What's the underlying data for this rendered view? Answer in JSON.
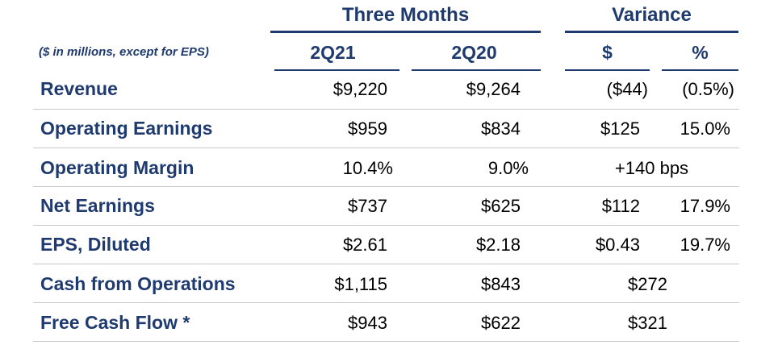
{
  "header": {
    "group_three_months": "Three Months",
    "group_variance": "Variance",
    "units_note": "($ in millions, except for EPS)",
    "col_2q21": "2Q21",
    "col_2q20": "2Q20",
    "col_var_dollar": "$",
    "col_var_pct": "%"
  },
  "rows": [
    {
      "label": "Revenue",
      "q21": "$9,220",
      "q20": "$9,264",
      "var_dollar": "($44)",
      "var_pct": "(0.5%)"
    },
    {
      "label": "Operating Earnings",
      "q21": "$959",
      "q20": "$834",
      "var_dollar": "$125",
      "var_pct": "15.0%"
    },
    {
      "label": "Operating Margin",
      "q21": "10.4%",
      "q20": "9.0%",
      "var_combined": "+140 bps"
    },
    {
      "label": "Net Earnings",
      "q21": "$737",
      "q20": "$625",
      "var_dollar": "$112",
      "var_pct": "17.9%"
    },
    {
      "label": "EPS, Diluted",
      "q21": "$2.61",
      "q20": "$2.18",
      "var_dollar": "$0.43",
      "var_pct": "19.7%"
    },
    {
      "label": "Cash from Operations",
      "q21": "$1,115",
      "q20": "$843",
      "var_combined": "$272"
    },
    {
      "label": "Free Cash Flow *",
      "q21": "$943",
      "q20": "$622",
      "var_combined": "$321"
    }
  ],
  "colors": {
    "header_navy": "#1f3a6e",
    "row_divider": "#c8c8c8",
    "value_text": "#000000"
  }
}
